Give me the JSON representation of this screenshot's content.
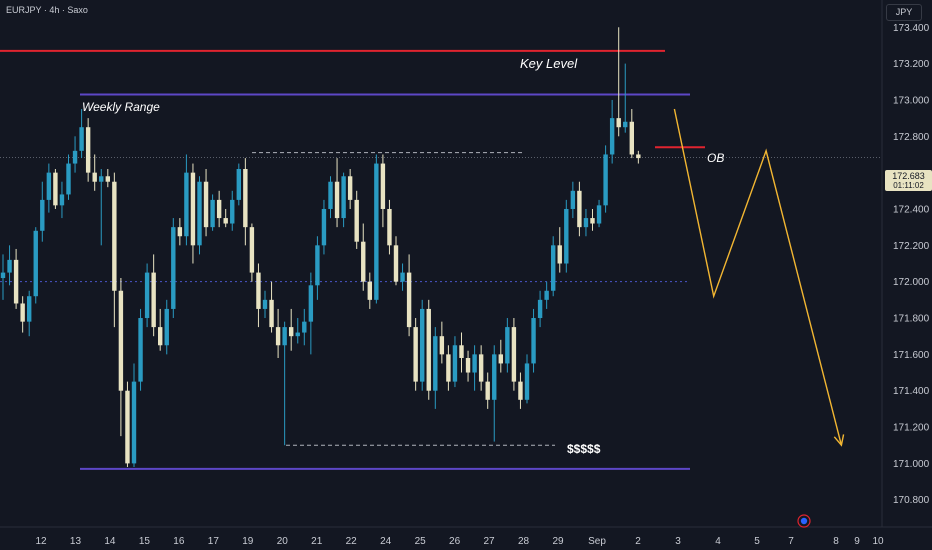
{
  "header": {
    "symbol_line": "EURJPY · 4h · Saxo",
    "currency": "JPY"
  },
  "current_price": {
    "value": 172.683,
    "label": "172.683",
    "countdown": "01:11:02"
  },
  "colors": {
    "background": "#131722",
    "bull": "#2a9bc2",
    "bear": "#e8e3c2",
    "key_level": "#e0242f",
    "range": "#5d47c7",
    "projection": "#f2b632",
    "mid_dotted": "#4a55c8",
    "dashed": "#b0b3bb"
  },
  "chart_data": {
    "type": "candlestick",
    "symbol": "EURJPY",
    "timeframe": "4h",
    "ylim": [
      170.65,
      173.55
    ],
    "y_ticks": [
      170.8,
      171.0,
      171.2,
      171.4,
      171.6,
      171.8,
      172.0,
      172.2,
      172.4,
      172.6,
      172.8,
      173.0,
      173.2,
      173.4
    ],
    "y_tick_labels": [
      "170.800",
      "171.000",
      "171.200",
      "171.400",
      "171.600",
      "171.800",
      "172.000",
      "172.200",
      "172.400",
      "",
      "172.800",
      "173.000",
      "173.200",
      "173.400"
    ],
    "x_labels": [
      "12",
      "13",
      "14",
      "15",
      "16",
      "17",
      "19",
      "20",
      "21",
      "22",
      "24",
      "25",
      "26",
      "27",
      "28",
      "29",
      "Sep",
      "2",
      "3",
      "4",
      "5",
      "7",
      "8",
      "9",
      "10"
    ],
    "candles_ohlc": [
      [
        172.02,
        172.15,
        171.9,
        172.05
      ],
      [
        172.05,
        172.2,
        171.98,
        172.12
      ],
      [
        172.12,
        172.18,
        171.85,
        171.88
      ],
      [
        171.88,
        171.92,
        171.72,
        171.78
      ],
      [
        171.78,
        171.95,
        171.7,
        171.92
      ],
      [
        171.92,
        172.3,
        171.88,
        172.28
      ],
      [
        172.28,
        172.55,
        172.22,
        172.45
      ],
      [
        172.45,
        172.65,
        172.38,
        172.6
      ],
      [
        172.6,
        172.62,
        172.4,
        172.42
      ],
      [
        172.42,
        172.55,
        172.35,
        172.48
      ],
      [
        172.48,
        172.7,
        172.45,
        172.65
      ],
      [
        172.65,
        172.8,
        172.6,
        172.72
      ],
      [
        172.72,
        172.95,
        172.68,
        172.85
      ],
      [
        172.85,
        172.9,
        172.55,
        172.6
      ],
      [
        172.6,
        172.7,
        172.5,
        172.55
      ],
      [
        172.55,
        172.62,
        172.2,
        172.58
      ],
      [
        172.58,
        172.62,
        172.52,
        172.55
      ],
      [
        172.55,
        172.6,
        171.75,
        171.95
      ],
      [
        171.95,
        172.02,
        171.15,
        171.4
      ],
      [
        171.4,
        171.45,
        170.98,
        171.0
      ],
      [
        171.0,
        171.55,
        170.98,
        171.45
      ],
      [
        171.45,
        171.85,
        171.4,
        171.8
      ],
      [
        171.8,
        172.1,
        171.75,
        172.05
      ],
      [
        172.05,
        172.15,
        171.7,
        171.75
      ],
      [
        171.75,
        171.85,
        171.62,
        171.65
      ],
      [
        171.65,
        171.9,
        171.6,
        171.85
      ],
      [
        171.85,
        172.35,
        171.8,
        172.3
      ],
      [
        172.3,
        172.35,
        172.2,
        172.25
      ],
      [
        172.25,
        172.7,
        172.2,
        172.6
      ],
      [
        172.6,
        172.65,
        172.1,
        172.2
      ],
      [
        172.2,
        172.58,
        172.15,
        172.55
      ],
      [
        172.55,
        172.62,
        172.25,
        172.3
      ],
      [
        172.3,
        172.48,
        172.28,
        172.45
      ],
      [
        172.45,
        172.5,
        172.3,
        172.35
      ],
      [
        172.35,
        172.4,
        172.3,
        172.32
      ],
      [
        172.32,
        172.5,
        172.28,
        172.45
      ],
      [
        172.45,
        172.65,
        172.42,
        172.62
      ],
      [
        172.62,
        172.68,
        172.2,
        172.3
      ],
      [
        172.3,
        172.32,
        172.0,
        172.05
      ],
      [
        172.05,
        172.1,
        171.75,
        171.85
      ],
      [
        171.85,
        171.95,
        171.8,
        171.9
      ],
      [
        171.9,
        172.0,
        171.72,
        171.75
      ],
      [
        171.75,
        171.85,
        171.58,
        171.65
      ],
      [
        171.65,
        171.78,
        171.1,
        171.75
      ],
      [
        171.75,
        171.85,
        171.62,
        171.7
      ],
      [
        171.7,
        171.8,
        171.66,
        171.72
      ],
      [
        171.72,
        171.85,
        171.65,
        171.78
      ],
      [
        171.78,
        172.05,
        171.6,
        171.98
      ],
      [
        171.98,
        172.25,
        171.9,
        172.2
      ],
      [
        172.2,
        172.45,
        172.15,
        172.4
      ],
      [
        172.4,
        172.58,
        172.35,
        172.55
      ],
      [
        172.55,
        172.68,
        172.3,
        172.35
      ],
      [
        172.35,
        172.6,
        172.3,
        172.58
      ],
      [
        172.58,
        172.62,
        172.4,
        172.45
      ],
      [
        172.45,
        172.5,
        172.18,
        172.22
      ],
      [
        172.22,
        172.32,
        171.95,
        172.0
      ],
      [
        172.0,
        172.05,
        171.85,
        171.9
      ],
      [
        171.9,
        172.7,
        171.88,
        172.65
      ],
      [
        172.65,
        172.7,
        172.3,
        172.4
      ],
      [
        172.4,
        172.45,
        172.15,
        172.2
      ],
      [
        172.2,
        172.25,
        171.98,
        172.0
      ],
      [
        172.0,
        172.1,
        171.95,
        172.05
      ],
      [
        172.05,
        172.15,
        171.7,
        171.75
      ],
      [
        171.75,
        171.8,
        171.4,
        171.45
      ],
      [
        171.45,
        171.9,
        171.4,
        171.85
      ],
      [
        171.85,
        171.9,
        171.35,
        171.4
      ],
      [
        171.4,
        171.75,
        171.3,
        171.7
      ],
      [
        171.7,
        171.78,
        171.55,
        171.6
      ],
      [
        171.6,
        171.65,
        171.4,
        171.45
      ],
      [
        171.45,
        171.7,
        171.42,
        171.65
      ],
      [
        171.65,
        171.72,
        171.5,
        171.58
      ],
      [
        171.58,
        171.62,
        171.45,
        171.5
      ],
      [
        171.5,
        171.65,
        171.4,
        171.6
      ],
      [
        171.6,
        171.65,
        171.4,
        171.45
      ],
      [
        171.45,
        171.5,
        171.3,
        171.35
      ],
      [
        171.35,
        171.65,
        171.12,
        171.6
      ],
      [
        171.6,
        171.68,
        171.5,
        171.55
      ],
      [
        171.55,
        171.8,
        171.5,
        171.75
      ],
      [
        171.75,
        171.8,
        171.4,
        171.45
      ],
      [
        171.45,
        171.5,
        171.3,
        171.35
      ],
      [
        171.35,
        171.6,
        171.33,
        171.55
      ],
      [
        171.55,
        171.85,
        171.5,
        171.8
      ],
      [
        171.8,
        171.95,
        171.75,
        171.9
      ],
      [
        171.9,
        172.0,
        171.85,
        171.95
      ],
      [
        171.95,
        172.25,
        171.92,
        172.2
      ],
      [
        172.2,
        172.3,
        172.05,
        172.1
      ],
      [
        172.1,
        172.45,
        172.05,
        172.4
      ],
      [
        172.4,
        172.55,
        172.35,
        172.5
      ],
      [
        172.5,
        172.55,
        172.25,
        172.3
      ],
      [
        172.3,
        172.4,
        172.25,
        172.35
      ],
      [
        172.35,
        172.4,
        172.28,
        172.32
      ],
      [
        172.32,
        172.45,
        172.3,
        172.42
      ],
      [
        172.42,
        172.75,
        172.38,
        172.7
      ],
      [
        172.7,
        173.0,
        172.65,
        172.9
      ],
      [
        172.9,
        173.4,
        172.8,
        172.85
      ],
      [
        172.85,
        173.2,
        172.82,
        172.88
      ],
      [
        172.88,
        172.95,
        172.68,
        172.7
      ],
      [
        172.7,
        172.72,
        172.65,
        172.68
      ]
    ],
    "levels": {
      "key_level": {
        "label": "Key Level",
        "value": 173.27
      },
      "weekly_range_high": {
        "label": "Weekly Range",
        "value": 173.03
      },
      "weekly_range_low": {
        "value": 170.97
      },
      "ob": {
        "label": "OB",
        "value": 172.74
      },
      "mid_dotted": {
        "value": 172.0
      },
      "dashed_high": {
        "value": 172.71
      },
      "dashed_low": {
        "label": "$$$$$",
        "value": 171.1
      }
    },
    "projection_path": [
      {
        "time_index": 102.5,
        "price": 172.95
      },
      {
        "time_index": 108.5,
        "price": 171.92
      },
      {
        "time_index": 116.5,
        "price": 172.72
      },
      {
        "time_index": 128.0,
        "price": 171.1
      }
    ]
  }
}
